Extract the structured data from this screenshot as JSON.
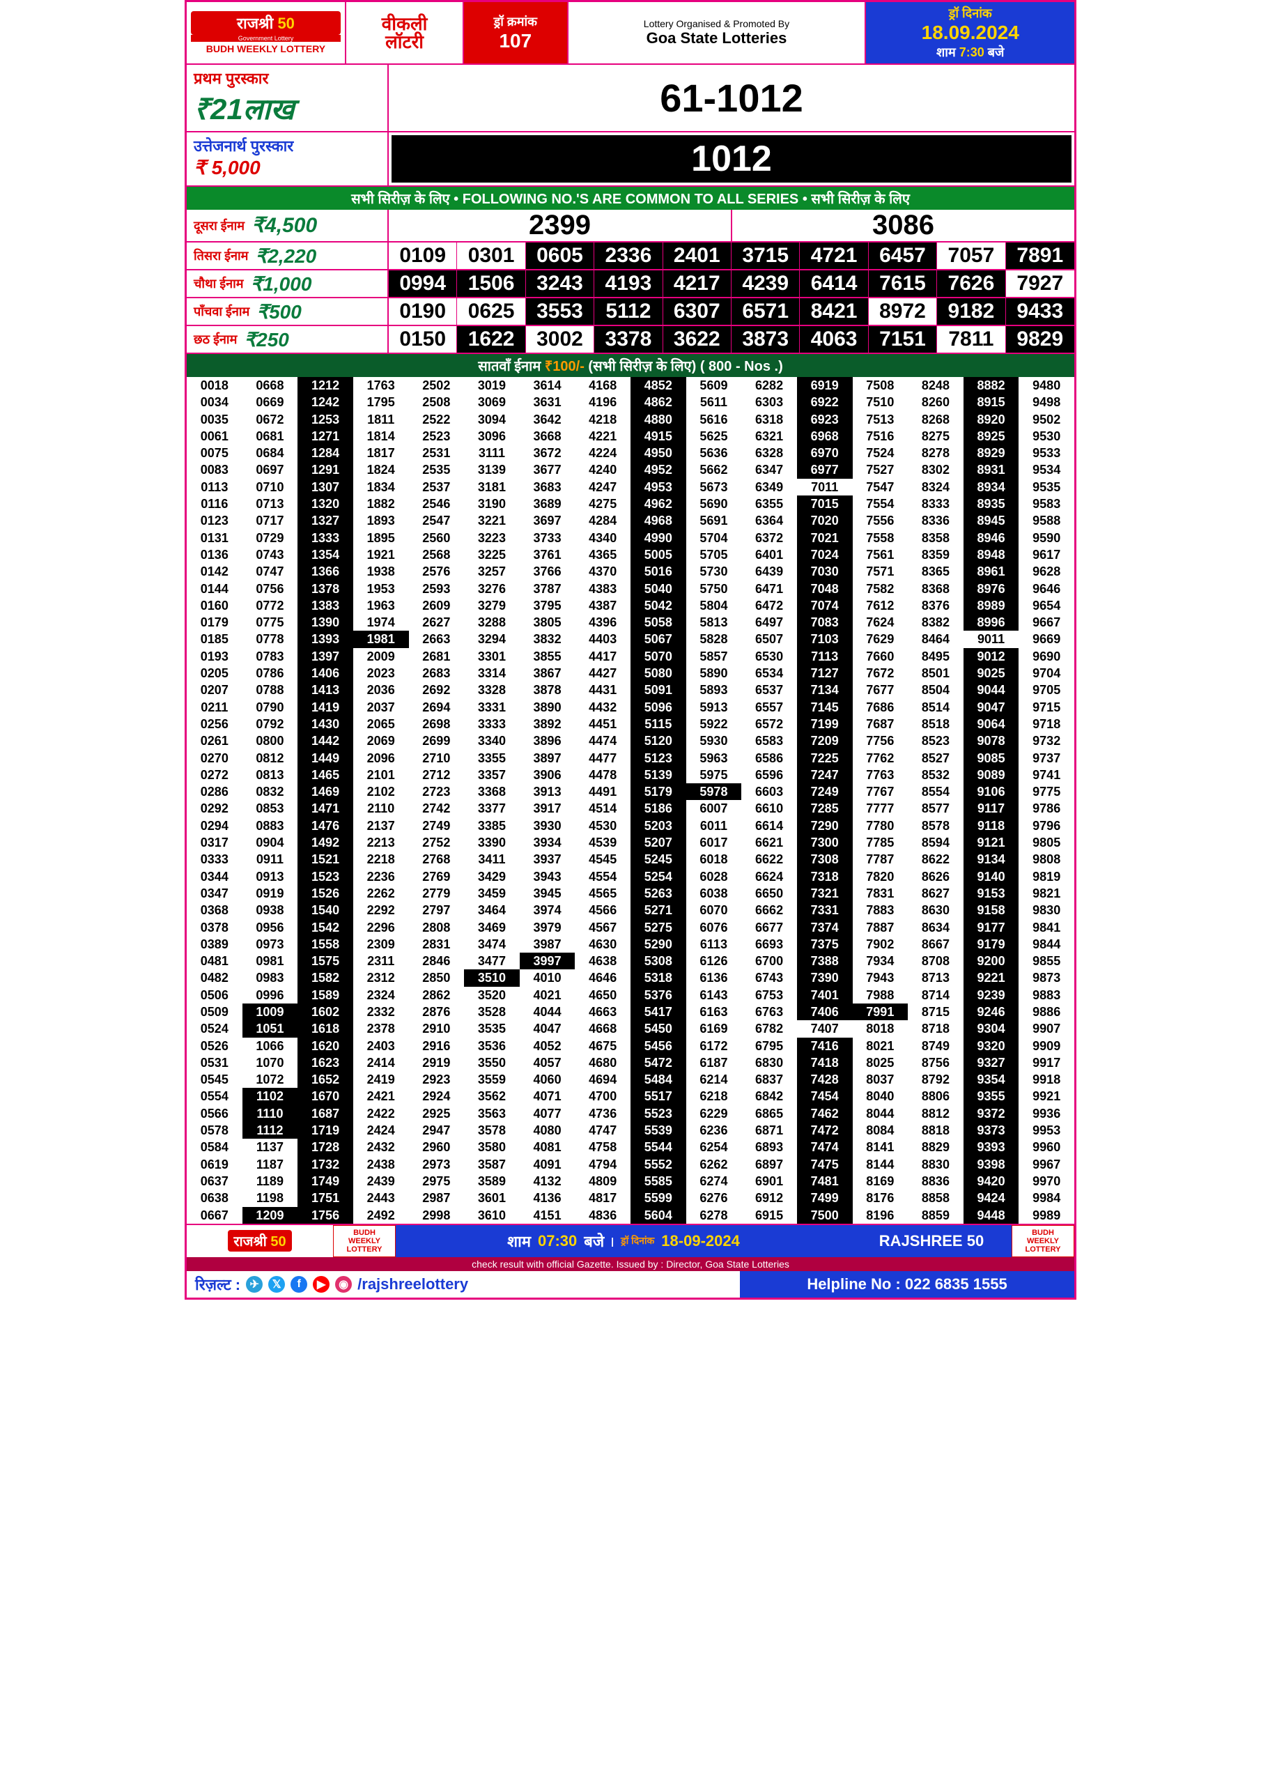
{
  "header": {
    "brand_hi": "राजश्री",
    "brand_num": "50",
    "brand_sub": "Government Lottery",
    "under": "BUDH WEEKLY LOTTERY",
    "weekly1": "वीकली",
    "weekly2": "लॉटरी",
    "draw_label": "ड्रॉ क्रमांक",
    "draw_no": "107",
    "org1": "Lottery Organised & Promoted By",
    "org2": "Goa State Lotteries",
    "date_label": "ड्रॉ  दिनांक",
    "date": "18.09.2024",
    "time_pre": "शाम ",
    "time_h": "7:30",
    "time_suf": " बजे"
  },
  "first": {
    "title": "प्रथम पुरस्कार",
    "amount": "₹21लाख",
    "number": "61-1012"
  },
  "cons": {
    "title": "उत्तेजनार्थ पुरस्कार",
    "amount": "₹ 5,000",
    "number": "1012"
  },
  "common_bar": "सभी सिरीज़ के लिए  •  FOLLOWING NO.'S ARE COMMON TO ALL SERIES  •  सभी सिरीज़ के लिए",
  "p2": {
    "title": "दूसरा ईनाम",
    "amount": "₹4,500",
    "nums": [
      "2399",
      "3086"
    ]
  },
  "p3": {
    "title": "तिसरा ईनाम",
    "amount": "₹2,220",
    "nums": [
      "0109",
      "0301",
      "0605",
      "2336",
      "2401",
      "3715",
      "4721",
      "6457",
      "7057",
      "7891"
    ],
    "black": [
      0,
      0,
      1,
      1,
      1,
      1,
      1,
      1,
      0,
      1
    ]
  },
  "p4": {
    "title": "चौथा ईनाम",
    "amount": "₹1,000",
    "nums": [
      "0994",
      "1506",
      "3243",
      "4193",
      "4217",
      "4239",
      "6414",
      "7615",
      "7626",
      "7927"
    ],
    "black": [
      1,
      1,
      1,
      1,
      1,
      1,
      1,
      1,
      1,
      0
    ]
  },
  "p5": {
    "title": "पाँचवा ईनाम",
    "amount": "₹500",
    "nums": [
      "0190",
      "0625",
      "3553",
      "5112",
      "6307",
      "6571",
      "8421",
      "8972",
      "9182",
      "9433"
    ],
    "black": [
      0,
      0,
      1,
      1,
      1,
      1,
      1,
      0,
      1,
      1
    ]
  },
  "p6": {
    "title": "छठ ईनाम",
    "amount": "₹250",
    "nums": [
      "0150",
      "1622",
      "3002",
      "3378",
      "3622",
      "3873",
      "4063",
      "7151",
      "7811",
      "9829"
    ],
    "black": [
      0,
      1,
      0,
      1,
      1,
      1,
      1,
      1,
      0,
      1
    ]
  },
  "p7bar": {
    "pre": "सातवाँ ईनाम ",
    "amt": "₹100/-",
    "mid": " (सभी सिरीज़ के लिए) ",
    "count": "( 800 - Nos .)"
  },
  "dense_cols": [
    [
      "0018",
      "0034",
      "0035",
      "0061",
      "0075",
      "0083",
      "0113",
      "0116",
      "0123",
      "0131",
      "0136",
      "0142",
      "0144",
      "0160",
      "0179",
      "0185",
      "0193",
      "0205",
      "0207",
      "0211",
      "0256",
      "0261",
      "0270",
      "0272",
      "0286",
      "0292",
      "0294",
      "0317",
      "0333",
      "0344",
      "0347",
      "0368",
      "0378",
      "0389",
      "0481",
      "0482",
      "0506",
      "0509",
      "0524",
      "0526",
      "0531",
      "0545",
      "0554",
      "0566",
      "0578",
      "0584",
      "0619",
      "0637",
      "0638",
      "0667"
    ],
    [
      "0668",
      "0669",
      "0672",
      "0681",
      "0684",
      "0697",
      "0710",
      "0713",
      "0717",
      "0729",
      "0743",
      "0747",
      "0756",
      "0772",
      "0775",
      "0778",
      "0783",
      "0786",
      "0788",
      "0790",
      "0792",
      "0800",
      "0812",
      "0813",
      "0832",
      "0853",
      "0883",
      "0904",
      "0911",
      "0913",
      "0919",
      "0938",
      "0956",
      "0973",
      "0981",
      "0983",
      "0996",
      "1009",
      "1051",
      "1066",
      "1070",
      "1072",
      "1102",
      "1110",
      "1112",
      "1137",
      "1187",
      "1189",
      "1198",
      "1209"
    ],
    [
      "1212",
      "1242",
      "1253",
      "1271",
      "1284",
      "1291",
      "1307",
      "1320",
      "1327",
      "1333",
      "1354",
      "1366",
      "1378",
      "1383",
      "1390",
      "1393",
      "1397",
      "1406",
      "1413",
      "1419",
      "1430",
      "1442",
      "1449",
      "1465",
      "1469",
      "1471",
      "1476",
      "1492",
      "1521",
      "1523",
      "1526",
      "1540",
      "1542",
      "1558",
      "1575",
      "1582",
      "1589",
      "1602",
      "1618",
      "1620",
      "1623",
      "1652",
      "1670",
      "1687",
      "1719",
      "1728",
      "1732",
      "1749",
      "1751",
      "1756"
    ],
    [
      "1763",
      "1795",
      "1811",
      "1814",
      "1817",
      "1824",
      "1834",
      "1882",
      "1893",
      "1895",
      "1921",
      "1938",
      "1953",
      "1963",
      "1974",
      "1981",
      "2009",
      "2023",
      "2036",
      "2037",
      "2065",
      "2069",
      "2096",
      "2101",
      "2102",
      "2110",
      "2137",
      "2213",
      "2218",
      "2236",
      "2262",
      "2292",
      "2296",
      "2309",
      "2311",
      "2312",
      "2324",
      "2332",
      "2378",
      "2403",
      "2414",
      "2419",
      "2421",
      "2422",
      "2424",
      "2432",
      "2438",
      "2439",
      "2443",
      "2492"
    ],
    [
      "2502",
      "2508",
      "2522",
      "2523",
      "2531",
      "2535",
      "2537",
      "2546",
      "2547",
      "2560",
      "2568",
      "2576",
      "2593",
      "2609",
      "2627",
      "2663",
      "2681",
      "2683",
      "2692",
      "2694",
      "2698",
      "2699",
      "2710",
      "2712",
      "2723",
      "2742",
      "2749",
      "2752",
      "2768",
      "2769",
      "2779",
      "2797",
      "2808",
      "2831",
      "2846",
      "2850",
      "2862",
      "2876",
      "2910",
      "2916",
      "2919",
      "2923",
      "2924",
      "2925",
      "2947",
      "2960",
      "2973",
      "2975",
      "2987",
      "2998"
    ],
    [
      "3019",
      "3069",
      "3094",
      "3096",
      "3111",
      "3139",
      "3181",
      "3190",
      "3221",
      "3223",
      "3225",
      "3257",
      "3276",
      "3279",
      "3288",
      "3294",
      "3301",
      "3314",
      "3328",
      "3331",
      "3333",
      "3340",
      "3355",
      "3357",
      "3368",
      "3377",
      "3385",
      "3390",
      "3411",
      "3429",
      "3459",
      "3464",
      "3469",
      "3474",
      "3477",
      "3510",
      "3520",
      "3528",
      "3535",
      "3536",
      "3550",
      "3559",
      "3562",
      "3563",
      "3578",
      "3580",
      "3587",
      "3589",
      "3601",
      "3610"
    ],
    [
      "3614",
      "3631",
      "3642",
      "3668",
      "3672",
      "3677",
      "3683",
      "3689",
      "3697",
      "3733",
      "3761",
      "3766",
      "3787",
      "3795",
      "3805",
      "3832",
      "3855",
      "3867",
      "3878",
      "3890",
      "3892",
      "3896",
      "3897",
      "3906",
      "3913",
      "3917",
      "3930",
      "3934",
      "3937",
      "3943",
      "3945",
      "3974",
      "3979",
      "3987",
      "3997",
      "4010",
      "4021",
      "4044",
      "4047",
      "4052",
      "4057",
      "4060",
      "4071",
      "4077",
      "4080",
      "4081",
      "4091",
      "4132",
      "4136",
      "4151"
    ],
    [
      "4168",
      "4196",
      "4218",
      "4221",
      "4224",
      "4240",
      "4247",
      "4275",
      "4284",
      "4340",
      "4365",
      "4370",
      "4383",
      "4387",
      "4396",
      "4403",
      "4417",
      "4427",
      "4431",
      "4432",
      "4451",
      "4474",
      "4477",
      "4478",
      "4491",
      "4514",
      "4530",
      "4539",
      "4545",
      "4554",
      "4565",
      "4566",
      "4567",
      "4630",
      "4638",
      "4646",
      "4650",
      "4663",
      "4668",
      "4675",
      "4680",
      "4694",
      "4700",
      "4736",
      "4747",
      "4758",
      "4794",
      "4809",
      "4817",
      "4836"
    ],
    [
      "4852",
      "4862",
      "4880",
      "4915",
      "4950",
      "4952",
      "4953",
      "4962",
      "4968",
      "4990",
      "5005",
      "5016",
      "5040",
      "5042",
      "5058",
      "5067",
      "5070",
      "5080",
      "5091",
      "5096",
      "5115",
      "5120",
      "5123",
      "5139",
      "5179",
      "5186",
      "5203",
      "5207",
      "5245",
      "5254",
      "5263",
      "5271",
      "5275",
      "5290",
      "5308",
      "5318",
      "5376",
      "5417",
      "5450",
      "5456",
      "5472",
      "5484",
      "5517",
      "5523",
      "5539",
      "5544",
      "5552",
      "5585",
      "5599",
      "5604"
    ],
    [
      "5609",
      "5611",
      "5616",
      "5625",
      "5636",
      "5662",
      "5673",
      "5690",
      "5691",
      "5704",
      "5705",
      "5730",
      "5750",
      "5804",
      "5813",
      "5828",
      "5857",
      "5890",
      "5893",
      "5913",
      "5922",
      "5930",
      "5963",
      "5975",
      "5978",
      "6007",
      "6011",
      "6017",
      "6018",
      "6028",
      "6038",
      "6070",
      "6076",
      "6113",
      "6126",
      "6136",
      "6143",
      "6163",
      "6169",
      "6172",
      "6187",
      "6214",
      "6218",
      "6229",
      "6236",
      "6254",
      "6262",
      "6274",
      "6276",
      "6278"
    ],
    [
      "6282",
      "6303",
      "6318",
      "6321",
      "6328",
      "6347",
      "6349",
      "6355",
      "6364",
      "6372",
      "6401",
      "6439",
      "6471",
      "6472",
      "6497",
      "6507",
      "6530",
      "6534",
      "6537",
      "6557",
      "6572",
      "6583",
      "6586",
      "6596",
      "6603",
      "6610",
      "6614",
      "6621",
      "6622",
      "6624",
      "6650",
      "6662",
      "6677",
      "6693",
      "6700",
      "6743",
      "6753",
      "6763",
      "6782",
      "6795",
      "6830",
      "6837",
      "6842",
      "6865",
      "6871",
      "6893",
      "6897",
      "6901",
      "6912",
      "6915"
    ],
    [
      "6919",
      "6922",
      "6923",
      "6968",
      "6970",
      "6977",
      "7011",
      "7015",
      "7020",
      "7021",
      "7024",
      "7030",
      "7048",
      "7074",
      "7083",
      "7103",
      "7113",
      "7127",
      "7134",
      "7145",
      "7199",
      "7209",
      "7225",
      "7247",
      "7249",
      "7285",
      "7290",
      "7300",
      "7308",
      "7318",
      "7321",
      "7331",
      "7374",
      "7375",
      "7388",
      "7390",
      "7401",
      "7406",
      "7407",
      "7416",
      "7418",
      "7428",
      "7454",
      "7462",
      "7472",
      "7474",
      "7475",
      "7481",
      "7499",
      "7500"
    ],
    [
      "7508",
      "7510",
      "7513",
      "7516",
      "7524",
      "7527",
      "7547",
      "7554",
      "7556",
      "7558",
      "7561",
      "7571",
      "7582",
      "7612",
      "7624",
      "7629",
      "7660",
      "7672",
      "7677",
      "7686",
      "7687",
      "7756",
      "7762",
      "7763",
      "7767",
      "7777",
      "7780",
      "7785",
      "7787",
      "7820",
      "7831",
      "7883",
      "7887",
      "7902",
      "7934",
      "7943",
      "7988",
      "7991",
      "8018",
      "8021",
      "8025",
      "8037",
      "8040",
      "8044",
      "8084",
      "8141",
      "8144",
      "8169",
      "8176",
      "8196"
    ],
    [
      "8248",
      "8260",
      "8268",
      "8275",
      "8278",
      "8302",
      "8324",
      "8333",
      "8336",
      "8358",
      "8359",
      "8365",
      "8368",
      "8376",
      "8382",
      "8464",
      "8495",
      "8501",
      "8504",
      "8514",
      "8518",
      "8523",
      "8527",
      "8532",
      "8554",
      "8577",
      "8578",
      "8594",
      "8622",
      "8626",
      "8627",
      "8630",
      "8634",
      "8667",
      "8708",
      "8713",
      "8714",
      "8715",
      "8718",
      "8749",
      "8756",
      "8792",
      "8806",
      "8812",
      "8818",
      "8829",
      "8830",
      "8836",
      "8858",
      "8859"
    ],
    [
      "8882",
      "8915",
      "8920",
      "8925",
      "8929",
      "8931",
      "8934",
      "8935",
      "8945",
      "8946",
      "8948",
      "8961",
      "8976",
      "8989",
      "8996",
      "9011",
      "9012",
      "9025",
      "9044",
      "9047",
      "9064",
      "9078",
      "9085",
      "9089",
      "9106",
      "9117",
      "9118",
      "9121",
      "9134",
      "9140",
      "9153",
      "9158",
      "9177",
      "9179",
      "9200",
      "9221",
      "9239",
      "9246",
      "9304",
      "9320",
      "9327",
      "9354",
      "9355",
      "9372",
      "9373",
      "9393",
      "9398",
      "9420",
      "9424",
      "9448"
    ],
    [
      "9480",
      "9498",
      "9502",
      "9530",
      "9533",
      "9534",
      "9535",
      "9583",
      "9588",
      "9590",
      "9617",
      "9628",
      "9646",
      "9654",
      "9667",
      "9669",
      "9690",
      "9704",
      "9705",
      "9715",
      "9718",
      "9732",
      "9737",
      "9741",
      "9775",
      "9786",
      "9796",
      "9805",
      "9808",
      "9819",
      "9821",
      "9830",
      "9841",
      "9844",
      "9855",
      "9873",
      "9883",
      "9886",
      "9907",
      "9909",
      "9917",
      "9918",
      "9921",
      "9936",
      "9953",
      "9960",
      "9967",
      "9970",
      "9984",
      "9989"
    ]
  ],
  "dense_black_cols": [
    2,
    8,
    11,
    14
  ],
  "dense_overrides": {
    "1-37": true,
    "1-38": true,
    "1-42": true,
    "1-43": true,
    "1-44": true,
    "1-49": true,
    "3-15": true,
    "3-16": false,
    "5-35": true,
    "6-34": true,
    "6-35": false,
    "8-10": true,
    "8-24": true,
    "9-24": true,
    "9-25": false,
    "11-5": true,
    "11-6": false,
    "11-37": true,
    "11-38": false,
    "12-37": true,
    "12-38": false,
    "14-14": true,
    "14-15": false
  },
  "footer": {
    "brand_hi": "राजश्री",
    "brand_num": "50",
    "bwl": "BUDH WEEKLY LOTTERY",
    "sham": "शाम",
    "time": "07:30",
    "baje": "बजे",
    "dd_label": "ड्रॉ दिनांक",
    "dd": "18-09-2024",
    "raj": "RAJSHREE 50",
    "gazette": "check result with official Gazette. Issued by : Director, Goa State Lotteries",
    "result": "रिज़ल्ट :",
    "handle": "/rajshreelottery",
    "help": "Helpline No : 022 6835 1555"
  }
}
